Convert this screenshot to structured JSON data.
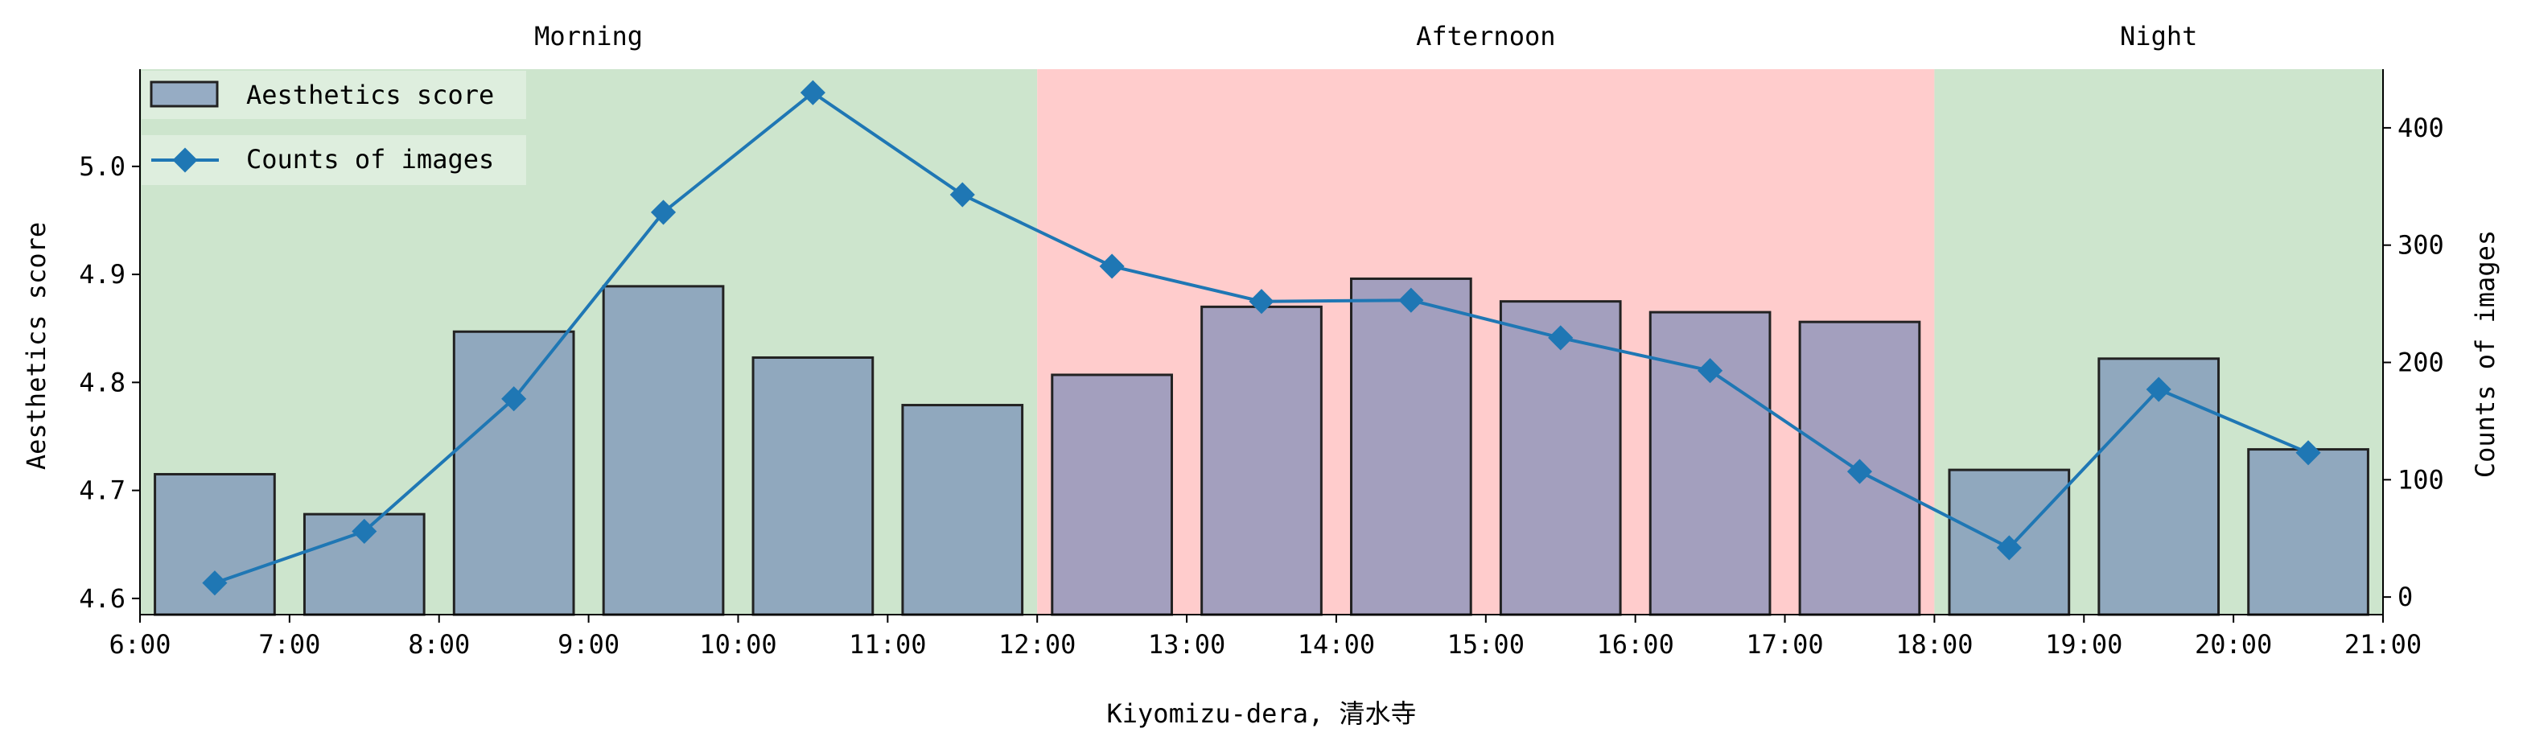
{
  "chart_data": {
    "type": "bar",
    "xlabel": "Kiyomizu-dera, 清水寺",
    "ylabel_left": "Aesthetics score",
    "ylabel_right": "Counts of images",
    "x_ticks": [
      "6:00",
      "7:00",
      "8:00",
      "9:00",
      "10:00",
      "11:00",
      "12:00",
      "13:00",
      "14:00",
      "15:00",
      "16:00",
      "17:00",
      "18:00",
      "19:00",
      "20:00",
      "21:00"
    ],
    "x_range": [
      6,
      21
    ],
    "y_left_range": [
      4.585,
      5.09
    ],
    "y_left_ticks": [
      "4.6",
      "4.7",
      "4.8",
      "4.9",
      "5.0"
    ],
    "y_right_range": [
      -15,
      450
    ],
    "y_right_ticks": [
      "0",
      "100",
      "200",
      "300",
      "400"
    ],
    "periods": [
      {
        "label": "Morning",
        "start": 6,
        "end": 12,
        "color": "#cde5cd"
      },
      {
        "label": "Afternoon",
        "start": 12,
        "end": 18,
        "color": "#ffcccc"
      },
      {
        "label": "Night",
        "start": 18,
        "end": 21,
        "color": "#cde5cd"
      }
    ],
    "x": [
      6.5,
      7.5,
      8.5,
      9.5,
      10.5,
      11.5,
      12.5,
      13.5,
      14.5,
      15.5,
      16.5,
      17.5,
      18.5,
      19.5,
      20.5
    ],
    "series": [
      {
        "name": "Aesthetics score",
        "type": "bar",
        "axis": "left",
        "color": "#6b82b4",
        "values": [
          4.715,
          4.678,
          4.847,
          4.889,
          4.823,
          4.779,
          4.807,
          4.87,
          4.896,
          4.875,
          4.865,
          4.856,
          4.719,
          4.822,
          4.738
        ]
      },
      {
        "name": "Counts of images",
        "type": "line",
        "axis": "right",
        "color": "#1f77b4",
        "values": [
          12,
          56,
          169,
          328,
          430,
          343,
          282,
          252,
          253,
          221,
          193,
          107,
          42,
          177,
          123
        ]
      }
    ],
    "legend_position": "top-left"
  }
}
